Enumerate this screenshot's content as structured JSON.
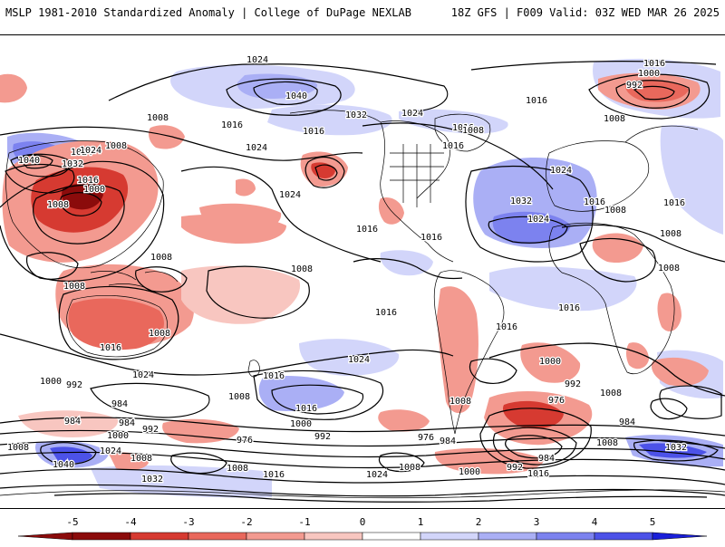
{
  "header": {
    "title": "MSLP 1981-2010 Standardized Anomaly | College of DuPage NEXLAB",
    "run_info": "18Z GFS | F009 Valid: 03Z WED MAR 26 2025"
  },
  "colors": {
    "neg_1": "#f8c6c0",
    "neg_2": "#f39a90",
    "neg_3": "#e9685c",
    "neg_4": "#d63a31",
    "neg_5": "#8b0b0b",
    "pos_1": "#d2d5fa",
    "pos_2": "#aaaff5",
    "pos_3": "#7c82ef",
    "pos_4": "#4c52e8",
    "pos_5": "#1a1fd9",
    "contour": "#000000",
    "coast": "#000000"
  },
  "colorbar": {
    "ticks": [
      "-5",
      "-4",
      "-3",
      "-2",
      "-1",
      "0",
      "1",
      "2",
      "3",
      "4",
      "5"
    ]
  },
  "isobar_labels": [
    {
      "text": "1016",
      "id": "lbl-1016-arctic-e"
    },
    {
      "text": "1024",
      "id": "lbl-1024-npac-n"
    },
    {
      "text": "1000",
      "id": "lbl-1000-asia-ne"
    },
    {
      "text": "992",
      "id": "lbl-992-asia-ne"
    },
    {
      "text": "1040",
      "id": "lbl-1040-npac"
    },
    {
      "text": "1032",
      "id": "lbl-1032-npac"
    },
    {
      "text": "1024",
      "id": "lbl-1024-canada"
    },
    {
      "text": "1016",
      "id": "lbl-1016-greenland"
    },
    {
      "text": "1008",
      "id": "lbl-1008-scand"
    },
    {
      "text": "1008",
      "id": "lbl-1008-japan"
    },
    {
      "text": "1016",
      "id": "lbl-1016-kamchatka"
    },
    {
      "text": "1024",
      "id": "lbl-1024-npac-mid"
    },
    {
      "text": "1016",
      "id": "lbl-1016-gulf-alaska"
    },
    {
      "text": "1016",
      "id": "lbl-1016-pac-nw"
    },
    {
      "text": "1024",
      "id": "lbl-1024-pac-nw"
    },
    {
      "text": "1016",
      "id": "lbl-1016-natl-n"
    },
    {
      "text": "1024",
      "id": "lbl-1024-natl"
    },
    {
      "text": "1008",
      "id": "lbl-1008-natl-e"
    },
    {
      "text": "1032",
      "id": "lbl-1032-azores"
    },
    {
      "text": "1024",
      "id": "lbl-1024-azores"
    },
    {
      "text": "1016",
      "id": "lbl-1016-europe"
    },
    {
      "text": "1008",
      "id": "lbl-1008-mideast"
    },
    {
      "text": "1016",
      "id": "lbl-1016-asia-e"
    },
    {
      "text": "1008",
      "id": "lbl-1008-africa-n"
    },
    {
      "text": "1024",
      "id": "lbl-1024-indian"
    },
    {
      "text": "1040",
      "id": "lbl-1040-siberia"
    },
    {
      "text": "1032",
      "id": "lbl-1032-siberia"
    },
    {
      "text": "1024",
      "id": "lbl-1024-siberia"
    },
    {
      "text": "1008",
      "id": "lbl-1008-china"
    },
    {
      "text": "1016",
      "id": "lbl-1016-china"
    },
    {
      "text": "1000",
      "id": "lbl-1000-china"
    },
    {
      "text": "1008",
      "id": "lbl-1008-india"
    },
    {
      "text": "1016",
      "id": "lbl-1016-mexico"
    },
    {
      "text": "1016",
      "id": "lbl-1016-carib"
    },
    {
      "text": "1008",
      "id": "lbl-1008-pacific"
    },
    {
      "text": "1008",
      "id": "lbl-1008-indonesia"
    },
    {
      "text": "1008",
      "id": "lbl-1008-australia-w"
    },
    {
      "text": "1008",
      "id": "lbl-1008-australia"
    },
    {
      "text": "1016",
      "id": "lbl-1016-spac"
    },
    {
      "text": "1016",
      "id": "lbl-1016-sam"
    },
    {
      "text": "1016",
      "id": "lbl-1016-satl"
    },
    {
      "text": "1008",
      "id": "lbl-1008-africa-e"
    },
    {
      "text": "1016",
      "id": "lbl-1016-sio"
    },
    {
      "text": "1024",
      "id": "lbl-1024-sio"
    },
    {
      "text": "1016",
      "id": "lbl-1016-tasman"
    },
    {
      "text": "1024",
      "id": "lbl-1024-spac-mid"
    },
    {
      "text": "1000",
      "id": "lbl-1000-so-w"
    },
    {
      "text": "992",
      "id": "lbl-992-so-w"
    },
    {
      "text": "1008",
      "id": "lbl-1008-so-w"
    },
    {
      "text": "984",
      "id": "lbl-984-so-w"
    },
    {
      "text": "1016",
      "id": "lbl-1016-so-mid"
    },
    {
      "text": "1000",
      "id": "lbl-1000-so-mid"
    },
    {
      "text": "992",
      "id": "lbl-992-so-mid"
    },
    {
      "text": "1008",
      "id": "lbl-1008-sam-s"
    },
    {
      "text": "984",
      "id": "lbl-984-so-a"
    },
    {
      "text": "992",
      "id": "lbl-992-so-a"
    },
    {
      "text": "1000",
      "id": "lbl-1000-so-a"
    },
    {
      "text": "1008",
      "id": "lbl-1008-so-a"
    },
    {
      "text": "976",
      "id": "lbl-976-so-b"
    },
    {
      "text": "984",
      "id": "lbl-984-so-b"
    },
    {
      "text": "992",
      "id": "lbl-992-so-b"
    },
    {
      "text": "1000",
      "id": "lbl-1000-so-b"
    },
    {
      "text": "984",
      "id": "lbl-984-so-c"
    },
    {
      "text": "976",
      "id": "lbl-976-so-c"
    },
    {
      "text": "976",
      "id": "lbl-976-so-d"
    },
    {
      "text": "984",
      "id": "lbl-984-so-d"
    },
    {
      "text": "1008",
      "id": "lbl-1008-so-e"
    },
    {
      "text": "1016",
      "id": "lbl-1016-so-e"
    },
    {
      "text": "984",
      "id": "lbl-984-so-f"
    },
    {
      "text": "1008",
      "id": "lbl-1008-so-f"
    },
    {
      "text": "1024",
      "id": "lbl-1024-so-f"
    },
    {
      "text": "1008",
      "id": "lbl-1008-ant-w"
    },
    {
      "text": "1040",
      "id": "lbl-1040-ant"
    },
    {
      "text": "1032",
      "id": "lbl-1032-ant"
    },
    {
      "text": "1000",
      "id": "lbl-1000-ant"
    },
    {
      "text": "992",
      "id": "lbl-992-ant"
    },
    {
      "text": "1008",
      "id": "lbl-1008-ant"
    },
    {
      "text": "1016",
      "id": "lbl-1016-ant"
    },
    {
      "text": "1024",
      "id": "lbl-1024-ant"
    },
    {
      "text": "1032",
      "id": "lbl-1032-ant-e"
    },
    {
      "text": "1008",
      "id": "lbl-1008-ant-e"
    }
  ]
}
